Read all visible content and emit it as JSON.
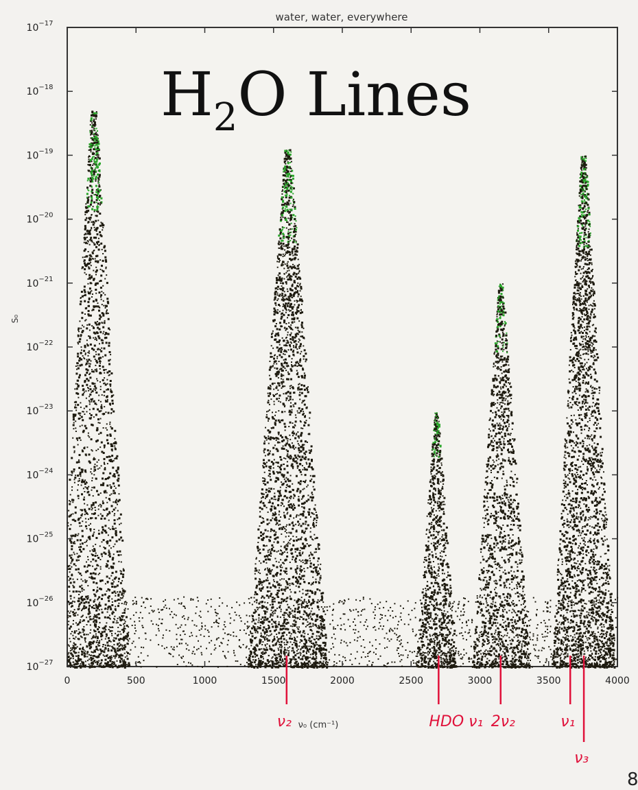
{
  "slide": {
    "heading_main": "H",
    "heading_sub": "2",
    "heading_rest": "O Lines",
    "page_number": "8"
  },
  "chart_data": {
    "type": "scatter",
    "title": "water, water, everywhere",
    "xlabel": "ν₀ (cm⁻¹)",
    "ylabel": "S₀",
    "xlim": [
      0,
      4000
    ],
    "ylim_log10": [
      -27,
      -17
    ],
    "y_scale": "log",
    "x_ticks": [
      "0",
      "500",
      "1000",
      "1500",
      "2000",
      "2500",
      "3000",
      "3500",
      "4000"
    ],
    "y_ticks": [
      {
        "base": "10",
        "exp": "−17"
      },
      {
        "base": "10",
        "exp": "−18"
      },
      {
        "base": "10",
        "exp": "−19"
      },
      {
        "base": "10",
        "exp": "−20"
      },
      {
        "base": "10",
        "exp": "−21"
      },
      {
        "base": "10",
        "exp": "−22"
      },
      {
        "base": "10",
        "exp": "−23"
      },
      {
        "base": "10",
        "exp": "−24"
      },
      {
        "base": "10",
        "exp": "−25"
      },
      {
        "base": "10",
        "exp": "−26"
      },
      {
        "base": "10",
        "exp": "−27"
      }
    ],
    "bands": [
      {
        "center": 190,
        "peak_log10": -18.3,
        "width": 520,
        "density": 1.0
      },
      {
        "center": 1600,
        "peak_log10": -18.9,
        "width": 580,
        "density": 1.25
      },
      {
        "center": 2680,
        "peak_log10": -23.0,
        "width": 300,
        "density": 0.45
      },
      {
        "center": 3150,
        "peak_log10": -21.0,
        "width": 420,
        "density": 0.7
      },
      {
        "center": 3750,
        "peak_log10": -19.0,
        "width": 460,
        "density": 1.2
      }
    ],
    "annotations": [
      {
        "label": "ν₂",
        "x": 1595
      },
      {
        "label": "HDO ν₁",
        "x": 2700
      },
      {
        "label": "2ν₂",
        "x": 3151
      },
      {
        "label": "ν₁",
        "x": 3657
      },
      {
        "label": "ν₃",
        "x": 3756
      }
    ],
    "grid": false,
    "point_color": "#1e1b10",
    "peak_point_color": "#2aa52a",
    "annotation_color": "#e0113a"
  }
}
